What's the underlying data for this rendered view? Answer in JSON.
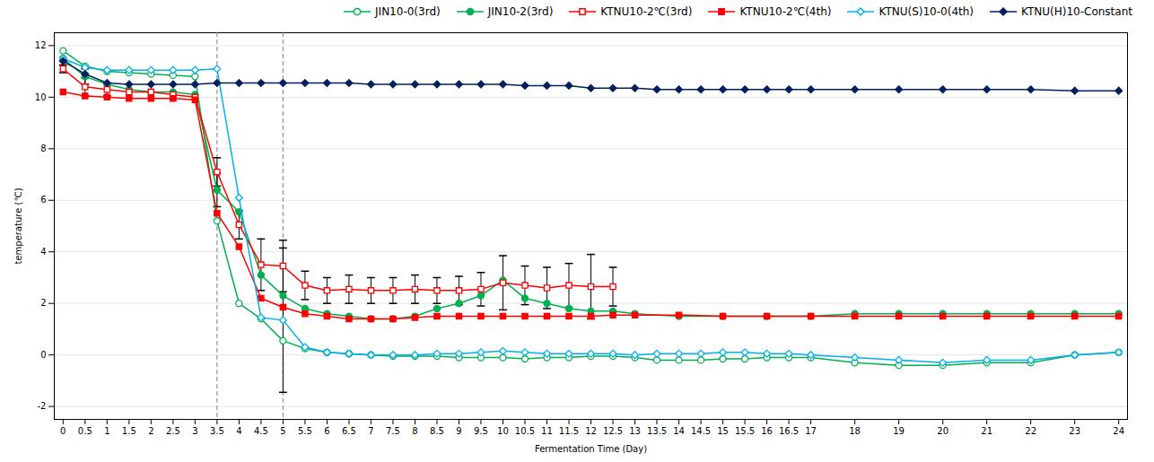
{
  "chart_data": {
    "type": "line",
    "xlabel": "Fermentation Time (Day)",
    "ylabel": "temperature (℃)",
    "xlim": [
      -0.2,
      24.2
    ],
    "ylim": [
      -2.5,
      12.5
    ],
    "xticks": [
      0,
      0.5,
      1,
      1.5,
      2,
      2.5,
      3,
      3.5,
      4,
      4.5,
      5,
      5.5,
      6,
      6.5,
      7,
      7.5,
      8,
      8.5,
      9,
      9.5,
      10,
      10.5,
      11,
      11.5,
      12,
      12.5,
      13,
      13.5,
      14,
      14.5,
      15,
      15.5,
      16,
      16.5,
      17,
      18,
      19,
      20,
      21,
      22,
      23,
      24
    ],
    "yticks": [
      -2,
      0,
      2,
      4,
      6,
      8,
      10,
      12
    ],
    "grid": "y",
    "legend": "upper right",
    "vlines": [
      3.5,
      5.0
    ],
    "series": [
      {
        "name": "JIN10-0(3rd)",
        "color": "#00b050",
        "marker": "circle-open",
        "x": [
          0,
          0.5,
          1,
          1.5,
          2,
          2.5,
          3,
          3.5,
          4,
          4.5,
          5,
          5.5,
          6,
          6.5,
          7,
          7.5,
          8,
          8.5,
          9,
          9.5,
          10,
          10.5,
          11,
          11.5,
          12,
          12.5,
          13,
          13.5,
          14,
          14.5,
          15,
          15.5,
          16,
          16.5,
          17,
          18,
          19,
          20,
          21,
          22,
          23,
          24
        ],
        "values": [
          11.8,
          11.2,
          11.0,
          10.95,
          10.9,
          10.85,
          10.8,
          5.2,
          2.0,
          1.4,
          0.55,
          0.25,
          0.1,
          0.05,
          0.0,
          -0.05,
          -0.05,
          -0.05,
          -0.1,
          -0.1,
          -0.1,
          -0.15,
          -0.1,
          -0.1,
          -0.05,
          -0.05,
          -0.1,
          -0.2,
          -0.2,
          -0.2,
          -0.15,
          -0.15,
          -0.1,
          -0.1,
          -0.1,
          -0.3,
          -0.4,
          -0.4,
          -0.3,
          -0.3,
          0.0,
          0.1
        ]
      },
      {
        "name": "JIN10-2(3rd)",
        "color": "#00b050",
        "marker": "circle",
        "x": [
          0,
          0.5,
          1,
          1.5,
          2,
          2.5,
          3,
          3.5,
          4,
          4.5,
          5,
          5.5,
          6,
          6.5,
          7,
          7.5,
          8,
          8.5,
          9,
          9.5,
          10,
          10.5,
          11,
          11.5,
          12,
          12.5,
          13,
          14,
          15,
          16,
          17,
          18,
          19,
          20,
          21,
          22,
          23,
          24
        ],
        "values": [
          11.5,
          10.8,
          10.5,
          10.3,
          10.2,
          10.2,
          10.1,
          6.4,
          5.55,
          3.1,
          2.3,
          1.8,
          1.6,
          1.5,
          1.4,
          1.4,
          1.5,
          1.8,
          2.0,
          2.3,
          2.9,
          2.2,
          2.0,
          1.8,
          1.7,
          1.7,
          1.6,
          1.5,
          1.5,
          1.5,
          1.5,
          1.6,
          1.6,
          1.6,
          1.6,
          1.6,
          1.6,
          1.6
        ],
        "error_x": [
          0.5,
          3.5
        ],
        "error_y": [
          10.8,
          6.4
        ],
        "error": [
          0.3,
          0.65
        ]
      },
      {
        "name": "KTNU10-2℃(3rd)",
        "color": "#ff0000",
        "marker": "square-open",
        "x": [
          0,
          0.5,
          1,
          1.5,
          2,
          2.5,
          3,
          3.5,
          4,
          4.5,
          5,
          5.5,
          6,
          6.5,
          7,
          7.5,
          8,
          8.5,
          9,
          9.5,
          10,
          10.5,
          11,
          11.5,
          12,
          12.5
        ],
        "values": [
          11.1,
          10.4,
          10.3,
          10.2,
          10.2,
          10.1,
          10.0,
          7.1,
          5.05,
          3.5,
          3.45,
          2.7,
          2.5,
          2.55,
          2.5,
          2.5,
          2.55,
          2.5,
          2.5,
          2.55,
          2.8,
          2.7,
          2.6,
          2.7,
          2.65,
          2.65
        ],
        "error_x": [
          0,
          0.5,
          1.0,
          3.5,
          4.0,
          4.5,
          5.0,
          5.5,
          6.0,
          6.5,
          7.0,
          7.5,
          8.0,
          8.5,
          9.0,
          9.5,
          10.0,
          10.5,
          11.0,
          11.5,
          12.0,
          12.5
        ],
        "error_y": [
          11.1,
          10.4,
          10.3,
          7.1,
          5.05,
          3.5,
          3.45,
          2.7,
          2.5,
          2.55,
          2.5,
          2.5,
          2.55,
          2.5,
          2.5,
          2.55,
          2.8,
          2.7,
          2.6,
          2.7,
          2.65,
          2.65
        ],
        "error": [
          0.15,
          0.35,
          0.25,
          0.55,
          0.55,
          1.0,
          1.0,
          0.55,
          0.5,
          0.55,
          0.5,
          0.5,
          0.55,
          0.5,
          0.55,
          0.65,
          1.05,
          0.75,
          0.8,
          0.85,
          1.25,
          0.75
        ]
      },
      {
        "name": "KTNU10-2℃(4th)",
        "color": "#ff0000",
        "marker": "square",
        "x": [
          0,
          0.5,
          1,
          1.5,
          2,
          2.5,
          3,
          3.5,
          4,
          4.5,
          5,
          5.5,
          6,
          6.5,
          7,
          7.5,
          8,
          8.5,
          9,
          9.5,
          10,
          10.5,
          11,
          11.5,
          12,
          12.5,
          13,
          14,
          15,
          16,
          17,
          18,
          19,
          20,
          21,
          22,
          23,
          24
        ],
        "values": [
          10.2,
          10.05,
          10.0,
          9.95,
          9.95,
          9.95,
          9.9,
          5.5,
          4.2,
          2.2,
          1.85,
          1.6,
          1.5,
          1.4,
          1.4,
          1.4,
          1.45,
          1.5,
          1.5,
          1.5,
          1.5,
          1.5,
          1.5,
          1.5,
          1.5,
          1.55,
          1.55,
          1.55,
          1.5,
          1.5,
          1.5,
          1.5,
          1.5,
          1.5,
          1.5,
          1.5,
          1.5,
          1.5
        ]
      },
      {
        "name": "KTNU(S)10-0(4th)",
        "color": "#00b0f0",
        "marker": "diamond-open",
        "x": [
          0,
          0.5,
          1,
          1.5,
          2,
          2.5,
          3,
          3.5,
          4,
          4.5,
          5,
          5.5,
          6,
          6.5,
          7,
          7.5,
          8,
          8.5,
          9,
          9.5,
          10,
          10.5,
          11,
          11.5,
          12,
          12.5,
          13,
          13.5,
          14,
          14.5,
          15,
          15.5,
          16,
          16.5,
          17,
          18,
          19,
          20,
          21,
          22,
          23,
          24
        ],
        "values": [
          11.5,
          11.15,
          11.05,
          11.05,
          11.05,
          11.05,
          11.05,
          11.1,
          6.1,
          1.45,
          1.35,
          0.3,
          0.1,
          0.05,
          0.0,
          0.0,
          0.0,
          0.05,
          0.05,
          0.1,
          0.15,
          0.1,
          0.05,
          0.05,
          0.05,
          0.05,
          0.0,
          0.05,
          0.05,
          0.05,
          0.1,
          0.1,
          0.05,
          0.05,
          0.0,
          -0.1,
          -0.2,
          -0.3,
          -0.2,
          -0.2,
          0.0,
          0.1
        ],
        "error_x": [
          5.0
        ],
        "error_y": [
          1.35
        ],
        "error": [
          2.8
        ]
      },
      {
        "name": "KTNU(H)10-Constant",
        "color": "#002060",
        "marker": "diamond",
        "x": [
          0,
          0.5,
          1,
          1.5,
          2,
          2.5,
          3,
          3.5,
          4,
          4.5,
          5,
          5.5,
          6,
          6.5,
          7,
          7.5,
          8,
          8.5,
          9,
          9.5,
          10,
          10.5,
          11,
          11.5,
          12,
          12.5,
          13,
          13.5,
          14,
          14.5,
          15,
          15.5,
          16,
          16.5,
          17,
          18,
          19,
          20,
          21,
          22,
          23,
          24
        ],
        "values": [
          11.4,
          10.9,
          10.55,
          10.5,
          10.5,
          10.5,
          10.5,
          10.55,
          10.55,
          10.55,
          10.55,
          10.55,
          10.55,
          10.55,
          10.5,
          10.5,
          10.5,
          10.5,
          10.5,
          10.5,
          10.5,
          10.45,
          10.45,
          10.45,
          10.35,
          10.35,
          10.35,
          10.3,
          10.3,
          10.3,
          10.3,
          10.3,
          10.3,
          10.3,
          10.3,
          10.3,
          10.3,
          10.3,
          10.3,
          10.3,
          10.25,
          10.25
        ]
      }
    ]
  }
}
